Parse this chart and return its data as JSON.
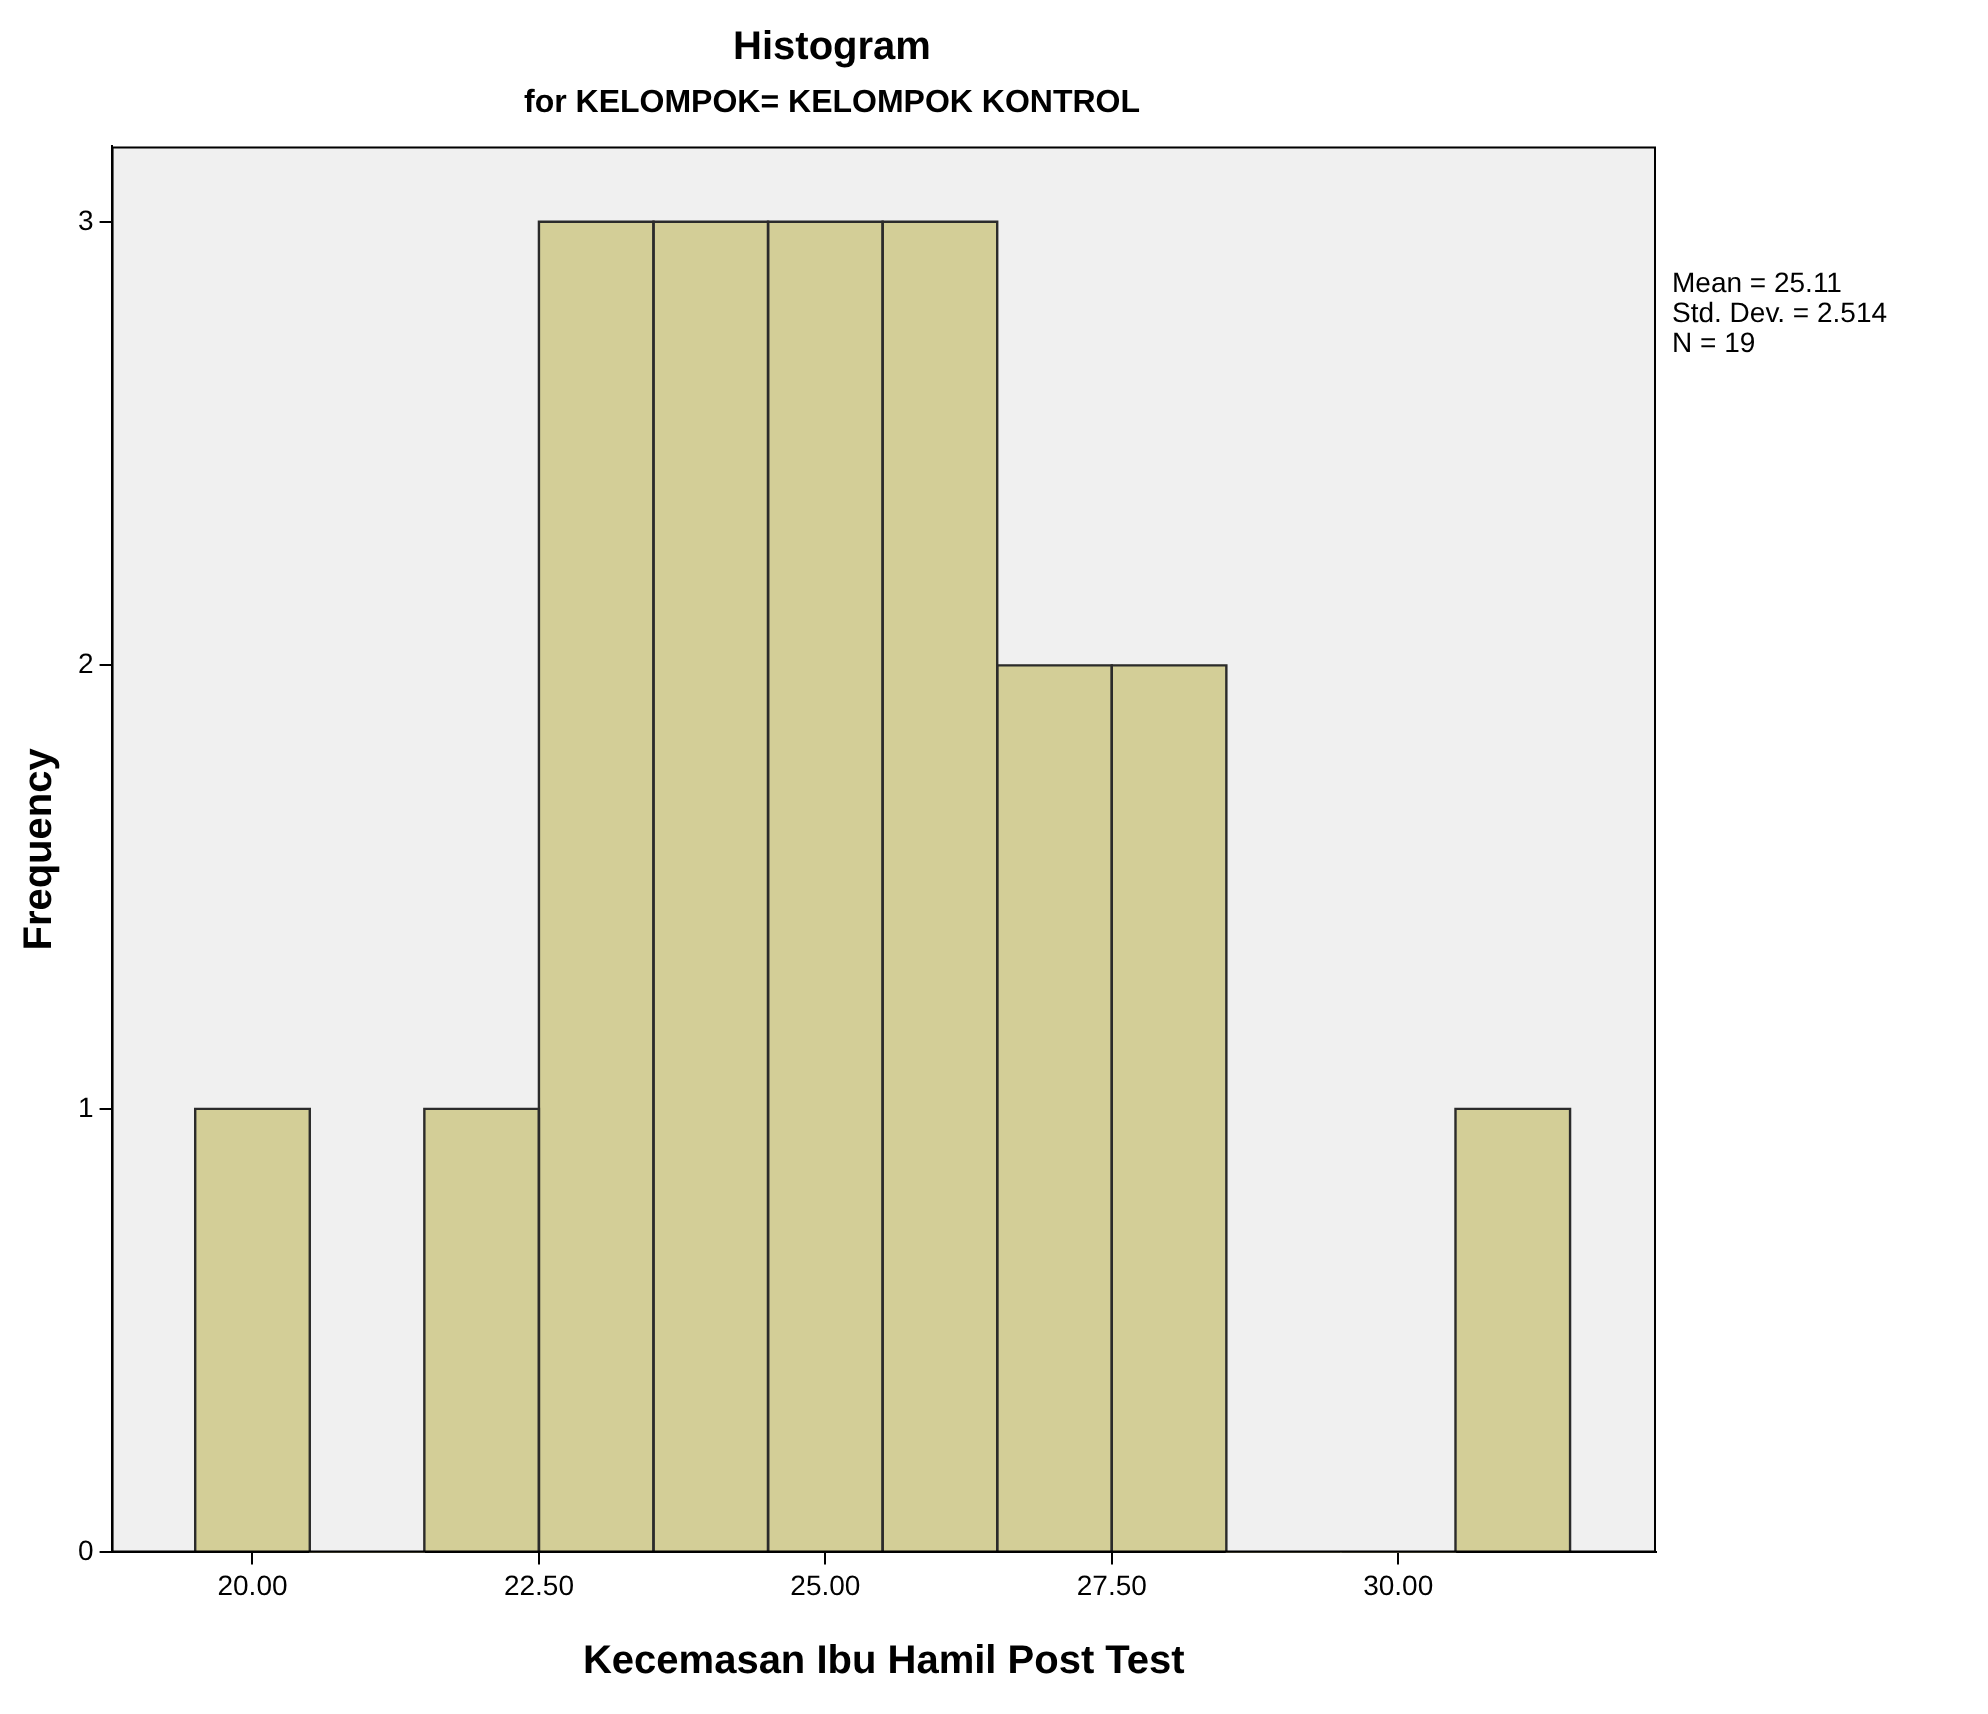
{
  "chart_data": {
    "type": "histogram",
    "title": "Histogram",
    "subtitle": "for KELOMPOK= KELOMPOK KONTROL",
    "xlabel": "Kecemasan Ibu Hamil Post Test",
    "ylabel": "Frequency",
    "bins": [
      19.5,
      20.5,
      21.5,
      22.5,
      23.5,
      24.5,
      25.5,
      26.5,
      27.5,
      28.5,
      29.5,
      30.5,
      31.5
    ],
    "values": [
      1,
      0,
      1,
      3,
      3,
      3,
      3,
      2,
      2,
      0,
      0,
      1
    ],
    "color": "#d3ce97",
    "xlim": [
      18.77,
      32.25
    ],
    "xticks": [
      {
        "value": 20,
        "label": "20.00"
      },
      {
        "value": 22.5,
        "label": "22.50"
      },
      {
        "value": 25,
        "label": "25.00"
      },
      {
        "value": 27.5,
        "label": "27.50"
      },
      {
        "value": 30,
        "label": "30.00"
      }
    ],
    "ylim": [
      0,
      3.17
    ],
    "yticks": [
      0,
      1,
      2,
      3
    ],
    "grid": false,
    "legend": false,
    "annotations": [
      "Mean = 25.11",
      "Std. Dev. = 2.514",
      "N = 19"
    ]
  }
}
